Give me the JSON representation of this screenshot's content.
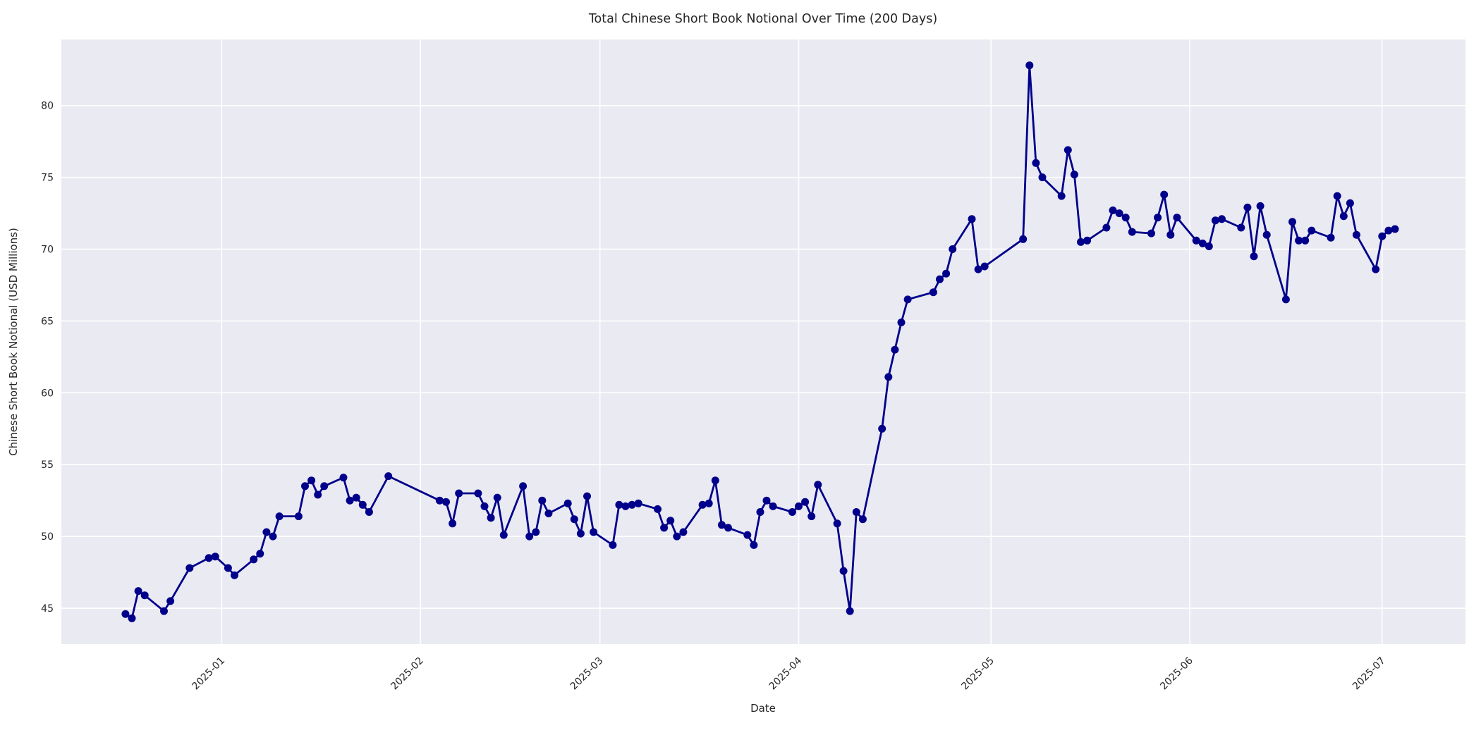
{
  "figure": {
    "title": "Total Chinese Short Book Notional Over Time (200 Days)",
    "background_color": "#ffffff",
    "plot_background_color": "#eaeaf2",
    "grid_color": "#ffffff",
    "text_color": "#262626",
    "line_color": "#00008b"
  },
  "chart_data": {
    "type": "line",
    "title": "Total Chinese Short Book Notional Over Time (200 Days)",
    "xlabel": "Date",
    "ylabel": "Chinese Short Book Notional (USD Millions)",
    "legend_position": "none",
    "grid": true,
    "marker": "circle",
    "line_color": "#00008b",
    "ylim": [
      42.5,
      84.6
    ],
    "xlim": [
      "2024-12-07",
      "2025-07-14"
    ],
    "yticks": [
      45,
      50,
      55,
      60,
      65,
      70,
      75,
      80
    ],
    "xtick_labels": [
      "2025-01",
      "2025-02",
      "2025-03",
      "2025-04",
      "2025-05",
      "2025-06",
      "2025-07"
    ],
    "x": [
      "2024-12-17",
      "2024-12-18",
      "2024-12-19",
      "2024-12-20",
      "2024-12-23",
      "2024-12-24",
      "2024-12-27",
      "2024-12-30",
      "2024-12-31",
      "2025-01-02",
      "2025-01-03",
      "2025-01-06",
      "2025-01-07",
      "2025-01-08",
      "2025-01-09",
      "2025-01-10",
      "2025-01-13",
      "2025-01-14",
      "2025-01-15",
      "2025-01-16",
      "2025-01-17",
      "2025-01-20",
      "2025-01-21",
      "2025-01-22",
      "2025-01-23",
      "2025-01-24",
      "2025-01-27",
      "2025-02-04",
      "2025-02-05",
      "2025-02-06",
      "2025-02-07",
      "2025-02-10",
      "2025-02-11",
      "2025-02-12",
      "2025-02-13",
      "2025-02-14",
      "2025-02-17",
      "2025-02-18",
      "2025-02-19",
      "2025-02-20",
      "2025-02-21",
      "2025-02-24",
      "2025-02-25",
      "2025-02-26",
      "2025-02-27",
      "2025-02-28",
      "2025-03-03",
      "2025-03-04",
      "2025-03-05",
      "2025-03-06",
      "2025-03-07",
      "2025-03-10",
      "2025-03-11",
      "2025-03-12",
      "2025-03-13",
      "2025-03-14",
      "2025-03-17",
      "2025-03-18",
      "2025-03-19",
      "2025-03-20",
      "2025-03-21",
      "2025-03-24",
      "2025-03-25",
      "2025-03-26",
      "2025-03-27",
      "2025-03-28",
      "2025-03-31",
      "2025-04-01",
      "2025-04-02",
      "2025-04-03",
      "2025-04-04",
      "2025-04-07",
      "2025-04-08",
      "2025-04-09",
      "2025-04-10",
      "2025-04-11",
      "2025-04-14",
      "2025-04-15",
      "2025-04-16",
      "2025-04-17",
      "2025-04-18",
      "2025-04-22",
      "2025-04-23",
      "2025-04-24",
      "2025-04-25",
      "2025-04-28",
      "2025-04-29",
      "2025-04-30",
      "2025-05-06",
      "2025-05-07",
      "2025-05-08",
      "2025-05-09",
      "2025-05-12",
      "2025-05-13",
      "2025-05-14",
      "2025-05-15",
      "2025-05-16",
      "2025-05-19",
      "2025-05-20",
      "2025-05-21",
      "2025-05-22",
      "2025-05-23",
      "2025-05-26",
      "2025-05-27",
      "2025-05-28",
      "2025-05-29",
      "2025-05-30",
      "2025-06-02",
      "2025-06-03",
      "2025-06-04",
      "2025-06-05",
      "2025-06-06",
      "2025-06-09",
      "2025-06-10",
      "2025-06-11",
      "2025-06-12",
      "2025-06-13",
      "2025-06-16",
      "2025-06-17",
      "2025-06-18",
      "2025-06-19",
      "2025-06-20",
      "2025-06-23",
      "2025-06-24",
      "2025-06-25",
      "2025-06-26",
      "2025-06-27",
      "2025-06-30",
      "2025-07-01",
      "2025-07-02",
      "2025-07-03"
    ],
    "values": [
      44.6,
      44.3,
      46.2,
      45.9,
      44.8,
      45.5,
      47.8,
      48.5,
      48.6,
      47.8,
      47.3,
      48.4,
      48.8,
      50.3,
      50.0,
      51.4,
      51.4,
      53.5,
      53.9,
      52.9,
      53.5,
      54.1,
      52.5,
      52.7,
      52.2,
      51.7,
      54.2,
      52.5,
      52.4,
      50.9,
      53.0,
      53.0,
      52.1,
      51.3,
      52.7,
      50.1,
      53.5,
      50.0,
      50.3,
      52.5,
      51.6,
      52.3,
      51.2,
      50.2,
      52.8,
      50.3,
      49.4,
      52.2,
      52.1,
      52.2,
      52.3,
      51.9,
      50.6,
      51.1,
      50.0,
      50.3,
      52.2,
      52.3,
      53.9,
      50.8,
      50.6,
      50.1,
      49.4,
      51.7,
      52.5,
      52.1,
      51.7,
      52.1,
      52.4,
      51.4,
      53.6,
      50.9,
      47.6,
      44.8,
      51.7,
      51.2,
      57.5,
      61.1,
      63.0,
      64.9,
      66.5,
      67.0,
      67.9,
      68.3,
      70.0,
      72.1,
      68.6,
      68.8,
      70.7,
      82.8,
      76.0,
      75.0,
      73.7,
      76.9,
      75.2,
      70.5,
      70.6,
      71.5,
      72.7,
      72.5,
      72.2,
      71.2,
      71.1,
      72.2,
      73.8,
      71.0,
      72.2,
      70.6,
      70.4,
      70.2,
      72.0,
      72.1,
      71.5,
      72.9,
      69.5,
      73.0,
      71.0,
      66.5,
      71.9,
      70.6,
      70.6,
      71.3,
      70.8,
      73.7,
      72.3,
      73.2,
      71.0,
      68.6,
      70.9,
      71.3,
      71.4
    ]
  }
}
